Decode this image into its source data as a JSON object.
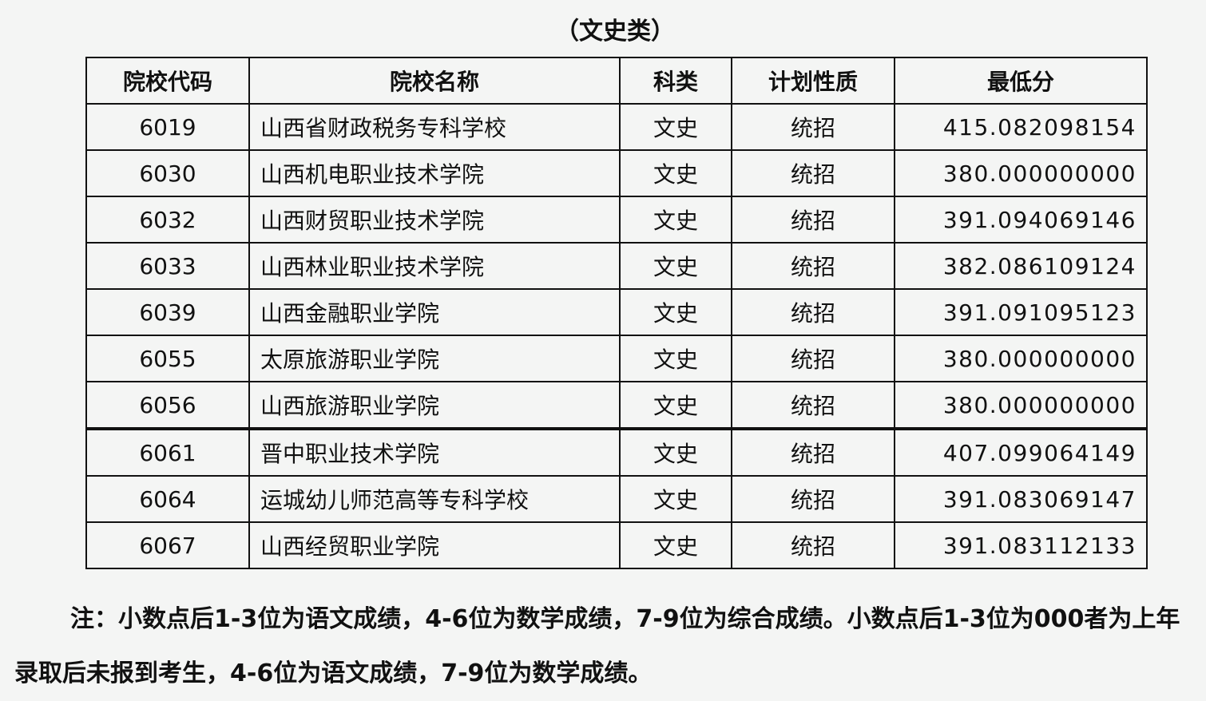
{
  "title": "（文史类）",
  "table": {
    "headers": [
      "院校代码",
      "院校名称",
      "科类",
      "计划性质",
      "最低分"
    ],
    "rows": [
      [
        "6019",
        "山西省财政税务专科学校",
        "文史",
        "统招",
        "415.082098154"
      ],
      [
        "6030",
        "山西机电职业技术学院",
        "文史",
        "统招",
        "380.000000000"
      ],
      [
        "6032",
        "山西财贸职业技术学院",
        "文史",
        "统招",
        "391.094069146"
      ],
      [
        "6033",
        "山西林业职业技术学院",
        "文史",
        "统招",
        "382.086109124"
      ],
      [
        "6039",
        "山西金融职业学院",
        "文史",
        "统招",
        "391.091095123"
      ],
      [
        "6055",
        "太原旅游职业学院",
        "文史",
        "统招",
        "380.000000000"
      ],
      [
        "6056",
        "山西旅游职业学院",
        "文史",
        "统招",
        "380.000000000"
      ],
      [
        "6061",
        "晋中职业技术学院",
        "文史",
        "统招",
        "407.099064149"
      ],
      [
        "6064",
        "运城幼儿师范高等专科学校",
        "文史",
        "统招",
        "391.083069147"
      ],
      [
        "6067",
        "山西经贸职业学院",
        "文史",
        "统招",
        "391.083112133"
      ]
    ]
  },
  "note": "注：小数点后1-3位为语文成绩，4-6位为数学成绩，7-9位为综合成绩。小数点后1-3位为000者为上年录取后未报到考生，4-6位为语文成绩，7-9位为数学成绩。"
}
